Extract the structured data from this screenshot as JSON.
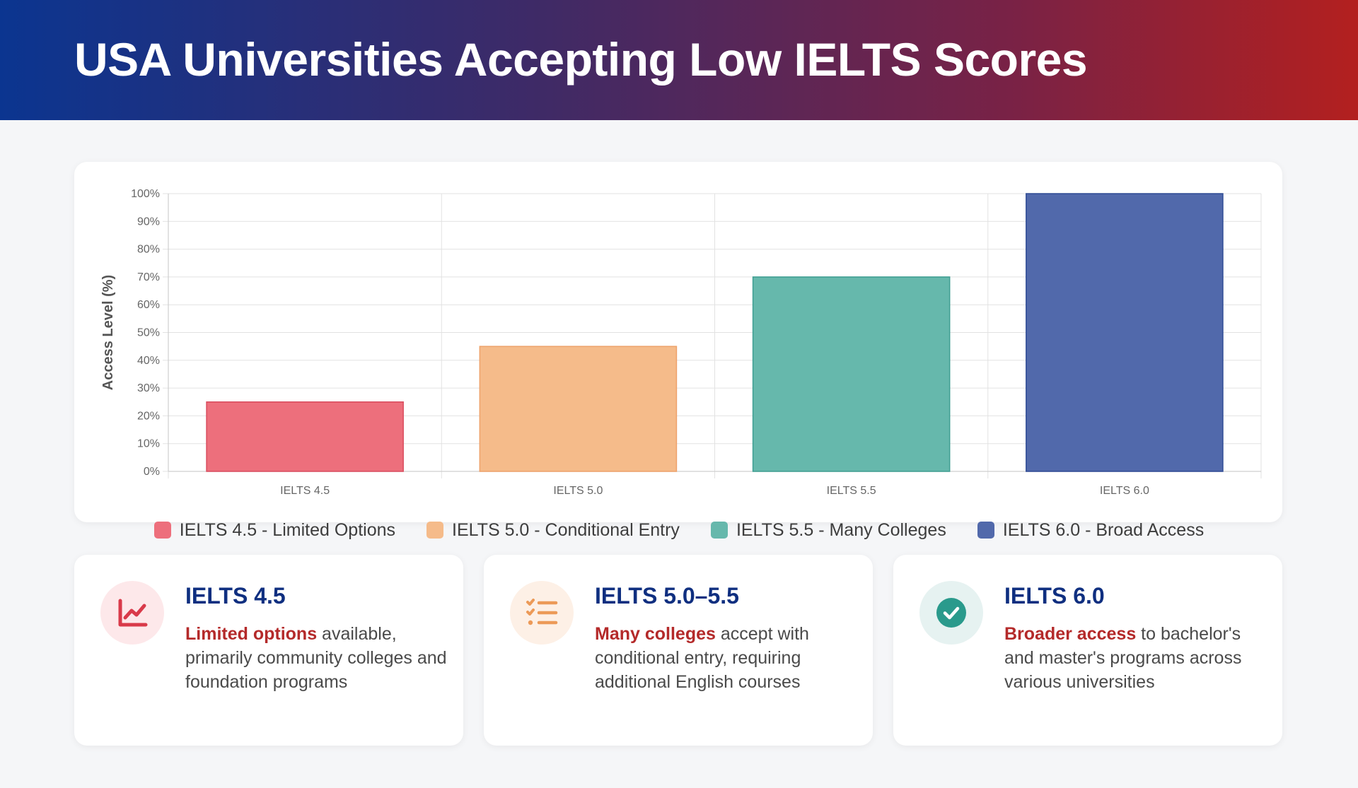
{
  "header": {
    "title": "USA Universities Accepting Low IELTS Scores"
  },
  "colors": {
    "ielts45": "#ed6f7c",
    "ielts50": "#f5bb8a",
    "ielts55": "#66b8ac",
    "ielts60": "#5169ab"
  },
  "chart_data": {
    "type": "bar",
    "categories": [
      "IELTS 4.5",
      "IELTS 5.0",
      "IELTS 5.5",
      "IELTS 6.0"
    ],
    "values": [
      25,
      45,
      70,
      100
    ],
    "ylabel": "Access Level (%)",
    "xlabel": "",
    "ylim": [
      0,
      100
    ],
    "ytick_labels": [
      "0%",
      "10%",
      "20%",
      "30%",
      "40%",
      "50%",
      "60%",
      "70%",
      "80%",
      "90%",
      "100%"
    ],
    "grid": true,
    "legend_position": "bottom",
    "colors": [
      "#ed6f7c",
      "#f5bb8a",
      "#66b8ac",
      "#5169ab"
    ],
    "border_colors": [
      "#d94d5e",
      "#eea26a",
      "#3f9e92",
      "#2f4b94"
    ]
  },
  "legend": [
    {
      "label": "IELTS 4.5 - Limited Options",
      "color": "#ed6f7c"
    },
    {
      "label": "IELTS 5.0 - Conditional Entry",
      "color": "#f5bb8a"
    },
    {
      "label": "IELTS 5.5 - Many Colleges",
      "color": "#66b8ac"
    },
    {
      "label": "IELTS 6.0 - Broad Access",
      "color": "#5169ab"
    }
  ],
  "cards": [
    {
      "title": "IELTS 4.5",
      "highlight": "Limited options",
      "text": " available, primarily community colleges and foundation programs",
      "icon": "chart-line-icon",
      "icon_bg": "#fde8ea",
      "icon_color": "#d93a4a"
    },
    {
      "title": "IELTS 5.0–5.5",
      "highlight": "Many colleges",
      "text": " accept with conditional entry, requiring additional English courses",
      "icon": "checklist-icon",
      "icon_bg": "#fdf0e6",
      "icon_color": "#ec9a58"
    },
    {
      "title": "IELTS 6.0",
      "highlight": "Broader access",
      "text": " to bachelor's and master's programs across various universities",
      "icon": "check-circle-icon",
      "icon_bg": "#e6f2f1",
      "icon_color": "#2a9a8c"
    }
  ]
}
